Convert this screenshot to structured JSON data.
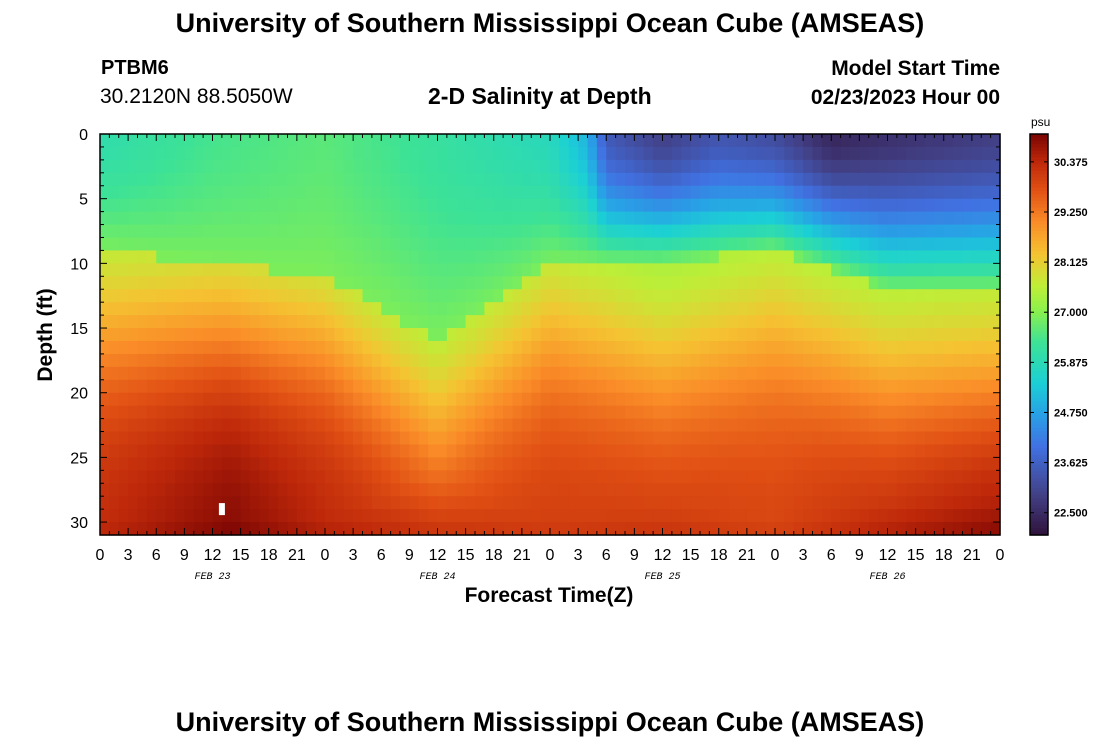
{
  "header": {
    "title": "University of Southern Mississippi Ocean Cube (AMSEAS)",
    "station": "PTBM6",
    "coords": "30.2120N  88.5050W",
    "subtitle": "2-D Salinity at Depth",
    "model_start_label": "Model Start Time",
    "model_start_value": "02/23/2023 Hour 00"
  },
  "footer": {
    "title": "University of Southern Mississippi Ocean Cube (AMSEAS)"
  },
  "chart_data": {
    "type": "heatmap",
    "title": "2-D Salinity at Depth",
    "xlabel": "Forecast Time(Z)",
    "ylabel": "Depth (ft)",
    "x_range_hours": [
      0,
      96
    ],
    "x_tick_step_hours": 3,
    "x_tick_labels": [
      "0",
      "3",
      "6",
      "9",
      "12",
      "15",
      "18",
      "21",
      "0",
      "3",
      "6",
      "9",
      "12",
      "15",
      "18",
      "21",
      "0",
      "3",
      "6",
      "9",
      "12",
      "15",
      "18",
      "21",
      "0",
      "3",
      "6",
      "9",
      "12",
      "15",
      "18",
      "21",
      "0"
    ],
    "day_labels": [
      {
        "label": "FEB 23",
        "hour": 12
      },
      {
        "label": "FEB 24",
        "hour": 36
      },
      {
        "label": "FEB 25",
        "hour": 60
      },
      {
        "label": "FEB 26",
        "hour": 84
      }
    ],
    "y_range_ft": [
      0,
      31
    ],
    "y_ticks": [
      0,
      5,
      10,
      15,
      20,
      25,
      30
    ],
    "colorbar": {
      "unit": "psu",
      "min": 22.0,
      "max": 31.0,
      "tick_values": [
        30.375,
        29.25,
        28.125,
        27.0,
        25.875,
        24.75,
        23.625,
        22.5
      ],
      "tick_labels": [
        "30.375",
        "29.250",
        "28.125",
        "27.000",
        "25.875",
        "24.750",
        "23.625",
        "22.500"
      ]
    },
    "salinity_model": {
      "surface_psu_by_hour": [
        [
          0,
          26.0
        ],
        [
          12,
          26.4
        ],
        [
          24,
          26.6
        ],
        [
          36,
          26.2
        ],
        [
          48,
          25.8
        ],
        [
          52,
          25.0
        ],
        [
          54,
          23.5
        ],
        [
          60,
          22.9
        ],
        [
          66,
          23.4
        ],
        [
          72,
          23.2
        ],
        [
          78,
          22.4
        ],
        [
          84,
          22.6
        ],
        [
          96,
          22.9
        ]
      ],
      "mixed_layer_base_ft_by_hour": [
        [
          0,
          9
        ],
        [
          12,
          10
        ],
        [
          24,
          11
        ],
        [
          36,
          16
        ],
        [
          48,
          10
        ],
        [
          60,
          10
        ],
        [
          72,
          9
        ],
        [
          84,
          12
        ],
        [
          96,
          12
        ]
      ],
      "halocline_mid_ft_by_hour": [
        [
          0,
          15
        ],
        [
          12,
          15
        ],
        [
          24,
          16
        ],
        [
          36,
          22
        ],
        [
          48,
          15
        ],
        [
          60,
          18
        ],
        [
          72,
          15
        ],
        [
          84,
          19
        ],
        [
          96,
          19
        ]
      ],
      "bottom_psu_by_hour": [
        [
          0,
          30.4
        ],
        [
          14,
          31.0
        ],
        [
          24,
          30.5
        ],
        [
          36,
          30.2
        ],
        [
          48,
          30.1
        ],
        [
          60,
          30.2
        ],
        [
          72,
          30.0
        ],
        [
          84,
          30.5
        ],
        [
          96,
          30.9
        ]
      ],
      "halocline_width_ft": 4.5
    },
    "annotations": [
      {
        "type": "white-marker",
        "hour": 13,
        "depth_ft": 29
      }
    ]
  }
}
